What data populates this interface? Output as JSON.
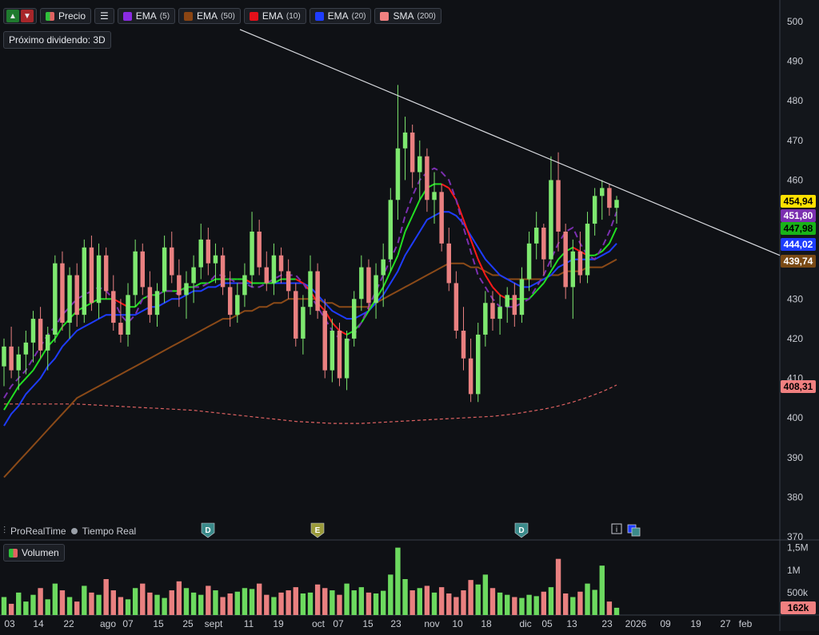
{
  "toolbar": {
    "price_label": "Precio",
    "indicators": [
      {
        "name": "EMA",
        "param": "(5)",
        "color": "#8a2be2"
      },
      {
        "name": "EMA",
        "param": "(50)",
        "color": "#8b4513"
      },
      {
        "name": "EMA",
        "param": "(10)",
        "color": "#e3101a"
      },
      {
        "name": "EMA",
        "param": "(20)",
        "color": "#1e3cff"
      },
      {
        "name": "SMA",
        "param": "(200)",
        "color": "#f08080"
      }
    ],
    "dividend": "Próximo dividendo: 3D"
  },
  "footer": {
    "brand": "ProRealTime",
    "mode": "Tiempo Real",
    "volume_label": "Volumen"
  },
  "events": [
    {
      "letter": "D",
      "date_index": 1,
      "color": "#3a8a8a"
    },
    {
      "letter": "E",
      "date_index": 2,
      "color": "#9a9a3a"
    },
    {
      "letter": "D",
      "date_index": 3,
      "color": "#3a8a8a"
    }
  ],
  "price_labels": [
    {
      "value": "454,94",
      "bg": "#ffe100",
      "fg": "#000000"
    },
    {
      "value": "451,80",
      "bg": "#7b2fb0",
      "fg": "#ffffff"
    },
    {
      "value": "447,98",
      "bg": "#19b319",
      "fg": "#000000"
    },
    {
      "value": "444,02",
      "bg": "#1e3cff",
      "fg": "#ffffff"
    },
    {
      "value": "439,74",
      "bg": "#7a4a15",
      "fg": "#ffffff"
    },
    {
      "value": "408,31",
      "bg": "#f08080",
      "fg": "#000000"
    }
  ],
  "volume_last_label": "162k",
  "chart_data": {
    "type": "candlestick",
    "y_axis": {
      "ticks": [
        370,
        380,
        390,
        400,
        410,
        420,
        430,
        440,
        450,
        460,
        470,
        480,
        490,
        500
      ],
      "ylim": [
        368,
        505
      ]
    },
    "volume_axis": {
      "ticks": [
        "500k",
        "1M",
        "1,5M"
      ],
      "ylim": [
        0,
        1600000
      ]
    },
    "x_ticks": [
      "03",
      "14",
      "22",
      "ago",
      "07",
      "15",
      "25",
      "sept",
      "11",
      "19",
      "oct",
      "07",
      "15",
      "23",
      "nov",
      "10",
      "18",
      "dic",
      "05",
      "13",
      "23",
      "2026",
      "09",
      "19",
      "27",
      "feb"
    ],
    "ema5": [
      405,
      408,
      410,
      412,
      415,
      418,
      421,
      423,
      426,
      428,
      430,
      431,
      432,
      433,
      432,
      430,
      426,
      424,
      426,
      430,
      431,
      431,
      432,
      432,
      431,
      433,
      433,
      433,
      434,
      436,
      436,
      435,
      434,
      434,
      433,
      433,
      434,
      435,
      436,
      436,
      436,
      434,
      431,
      428,
      425,
      422,
      420,
      419,
      421,
      424,
      428,
      432,
      436,
      440,
      444,
      451,
      456,
      460,
      462,
      463,
      462,
      460,
      455,
      448,
      442,
      436,
      433,
      430,
      428,
      428,
      428,
      429,
      430,
      433,
      436,
      440,
      444,
      447,
      448,
      444,
      441,
      440,
      443,
      447,
      452
    ],
    "ema10": [
      402,
      405,
      408,
      410,
      412,
      415,
      418,
      420,
      423,
      425,
      427,
      428,
      429,
      430,
      430,
      430,
      429,
      428,
      428,
      430,
      431,
      431,
      432,
      432,
      432,
      433,
      433,
      434,
      434,
      435,
      435,
      435,
      435,
      435,
      434,
      434,
      434,
      434,
      435,
      435,
      435,
      434,
      432,
      429,
      427,
      424,
      422,
      421,
      422,
      424,
      427,
      430,
      433,
      437,
      441,
      447,
      451,
      455,
      458,
      459,
      459,
      458,
      455,
      450,
      445,
      440,
      436,
      433,
      431,
      430,
      430,
      430,
      430,
      432,
      434,
      437,
      440,
      442,
      443,
      442,
      441,
      441,
      442,
      444,
      448
    ],
    "ema20": [
      398,
      401,
      403,
      406,
      408,
      410,
      413,
      415,
      418,
      420,
      422,
      423,
      424,
      425,
      426,
      426,
      426,
      426,
      426,
      427,
      428,
      428,
      429,
      430,
      430,
      431,
      432,
      432,
      433,
      433,
      434,
      434,
      434,
      434,
      434,
      434,
      434,
      434,
      434,
      434,
      434,
      434,
      433,
      431,
      429,
      427,
      426,
      425,
      425,
      426,
      427,
      429,
      431,
      434,
      437,
      441,
      444,
      447,
      450,
      451,
      452,
      452,
      451,
      449,
      446,
      443,
      440,
      438,
      436,
      435,
      434,
      433,
      433,
      434,
      435,
      436,
      438,
      439,
      440,
      440,
      440,
      440,
      441,
      442,
      444
    ],
    "ema50": [
      385,
      387,
      389,
      391,
      393,
      395,
      397,
      399,
      401,
      403,
      405,
      406,
      407,
      408,
      409,
      410,
      411,
      412,
      413,
      414,
      415,
      416,
      417,
      418,
      419,
      420,
      421,
      422,
      423,
      424,
      425,
      425,
      426,
      427,
      427,
      428,
      428,
      429,
      429,
      430,
      430,
      430,
      430,
      430,
      429,
      429,
      428,
      428,
      428,
      428,
      428,
      429,
      430,
      431,
      432,
      433,
      434,
      435,
      436,
      437,
      438,
      439,
      439,
      439,
      438,
      438,
      437,
      436,
      436,
      435,
      435,
      435,
      435,
      435,
      435,
      436,
      436,
      437,
      437,
      437,
      438,
      438,
      438,
      439,
      440
    ],
    "sma200": [
      403.5,
      403.5,
      403.5,
      403.5,
      403.5,
      403.5,
      403.5,
      403.5,
      403.5,
      403.5,
      403.5,
      403.4,
      403.3,
      403.2,
      403.1,
      403.0,
      402.9,
      402.8,
      402.7,
      402.6,
      402.5,
      402.4,
      402.3,
      402.2,
      402.1,
      402.0,
      401.9,
      401.7,
      401.5,
      401.3,
      401.1,
      400.9,
      400.7,
      400.5,
      400.3,
      400.1,
      399.9,
      399.7,
      399.5,
      399.3,
      399.1,
      399.0,
      398.9,
      398.8,
      398.7,
      398.6,
      398.6,
      398.6,
      398.6,
      398.6,
      398.7,
      398.8,
      398.9,
      399.0,
      399.1,
      399.2,
      399.3,
      399.4,
      399.5,
      399.6,
      399.7,
      399.8,
      399.9,
      400.0,
      400.1,
      400.2,
      400.3,
      400.4,
      400.6,
      400.8,
      401.0,
      401.3,
      401.6,
      401.9,
      402.2,
      402.6,
      403.0,
      403.5,
      404.0,
      404.6,
      405.2,
      405.9,
      406.6,
      407.4,
      408.3
    ],
    "trendline": {
      "from": 498,
      "to": 441
    },
    "candles": [
      {
        "o": 413,
        "h": 420,
        "l": 408,
        "c": 418
      },
      {
        "o": 418,
        "h": 423,
        "l": 410,
        "c": 412
      },
      {
        "o": 412,
        "h": 418,
        "l": 407,
        "c": 416
      },
      {
        "o": 416,
        "h": 422,
        "l": 411,
        "c": 419
      },
      {
        "o": 419,
        "h": 427,
        "l": 414,
        "c": 425
      },
      {
        "o": 425,
        "h": 428,
        "l": 415,
        "c": 417
      },
      {
        "o": 417,
        "h": 423,
        "l": 412,
        "c": 421
      },
      {
        "o": 421,
        "h": 441,
        "l": 419,
        "c": 439
      },
      {
        "o": 439,
        "h": 442,
        "l": 422,
        "c": 424
      },
      {
        "o": 424,
        "h": 438,
        "l": 420,
        "c": 436
      },
      {
        "o": 436,
        "h": 439,
        "l": 423,
        "c": 426
      },
      {
        "o": 426,
        "h": 445,
        "l": 424,
        "c": 443
      },
      {
        "o": 443,
        "h": 446,
        "l": 427,
        "c": 429
      },
      {
        "o": 429,
        "h": 444,
        "l": 425,
        "c": 441
      },
      {
        "o": 441,
        "h": 443,
        "l": 430,
        "c": 432
      },
      {
        "o": 432,
        "h": 436,
        "l": 422,
        "c": 424
      },
      {
        "o": 424,
        "h": 430,
        "l": 419,
        "c": 421
      },
      {
        "o": 421,
        "h": 434,
        "l": 418,
        "c": 431
      },
      {
        "o": 431,
        "h": 445,
        "l": 428,
        "c": 442
      },
      {
        "o": 442,
        "h": 444,
        "l": 431,
        "c": 433
      },
      {
        "o": 433,
        "h": 437,
        "l": 424,
        "c": 426
      },
      {
        "o": 426,
        "h": 434,
        "l": 423,
        "c": 432
      },
      {
        "o": 432,
        "h": 446,
        "l": 429,
        "c": 443
      },
      {
        "o": 443,
        "h": 447,
        "l": 434,
        "c": 436
      },
      {
        "o": 436,
        "h": 440,
        "l": 428,
        "c": 431
      },
      {
        "o": 431,
        "h": 437,
        "l": 425,
        "c": 434
      },
      {
        "o": 434,
        "h": 441,
        "l": 429,
        "c": 438
      },
      {
        "o": 438,
        "h": 449,
        "l": 435,
        "c": 445
      },
      {
        "o": 445,
        "h": 448,
        "l": 436,
        "c": 439
      },
      {
        "o": 439,
        "h": 444,
        "l": 434,
        "c": 441
      },
      {
        "o": 441,
        "h": 443,
        "l": 431,
        "c": 433
      },
      {
        "o": 433,
        "h": 437,
        "l": 423,
        "c": 426
      },
      {
        "o": 426,
        "h": 434,
        "l": 424,
        "c": 431
      },
      {
        "o": 431,
        "h": 439,
        "l": 428,
        "c": 436
      },
      {
        "o": 436,
        "h": 452,
        "l": 433,
        "c": 447
      },
      {
        "o": 447,
        "h": 450,
        "l": 436,
        "c": 438
      },
      {
        "o": 438,
        "h": 442,
        "l": 432,
        "c": 434
      },
      {
        "o": 434,
        "h": 444,
        "l": 431,
        "c": 441
      },
      {
        "o": 441,
        "h": 443,
        "l": 434,
        "c": 437
      },
      {
        "o": 437,
        "h": 440,
        "l": 430,
        "c": 432
      },
      {
        "o": 432,
        "h": 434,
        "l": 418,
        "c": 420
      },
      {
        "o": 420,
        "h": 431,
        "l": 416,
        "c": 428
      },
      {
        "o": 428,
        "h": 441,
        "l": 426,
        "c": 437
      },
      {
        "o": 437,
        "h": 439,
        "l": 425,
        "c": 427
      },
      {
        "o": 427,
        "h": 430,
        "l": 410,
        "c": 412
      },
      {
        "o": 412,
        "h": 425,
        "l": 409,
        "c": 422
      },
      {
        "o": 422,
        "h": 424,
        "l": 408,
        "c": 410
      },
      {
        "o": 410,
        "h": 422,
        "l": 407,
        "c": 420
      },
      {
        "o": 420,
        "h": 432,
        "l": 418,
        "c": 430
      },
      {
        "o": 430,
        "h": 441,
        "l": 427,
        "c": 438
      },
      {
        "o": 438,
        "h": 440,
        "l": 427,
        "c": 429
      },
      {
        "o": 429,
        "h": 439,
        "l": 425,
        "c": 436
      },
      {
        "o": 436,
        "h": 444,
        "l": 428,
        "c": 440
      },
      {
        "o": 440,
        "h": 458,
        "l": 437,
        "c": 455
      },
      {
        "o": 455,
        "h": 484,
        "l": 450,
        "c": 468
      },
      {
        "o": 468,
        "h": 476,
        "l": 460,
        "c": 472
      },
      {
        "o": 472,
        "h": 474,
        "l": 458,
        "c": 462
      },
      {
        "o": 462,
        "h": 470,
        "l": 455,
        "c": 466
      },
      {
        "o": 466,
        "h": 468,
        "l": 452,
        "c": 455
      },
      {
        "o": 455,
        "h": 462,
        "l": 449,
        "c": 457
      },
      {
        "o": 457,
        "h": 459,
        "l": 442,
        "c": 444
      },
      {
        "o": 444,
        "h": 448,
        "l": 432,
        "c": 434
      },
      {
        "o": 434,
        "h": 437,
        "l": 420,
        "c": 422
      },
      {
        "o": 422,
        "h": 428,
        "l": 412,
        "c": 415
      },
      {
        "o": 415,
        "h": 420,
        "l": 404,
        "c": 406
      },
      {
        "o": 406,
        "h": 424,
        "l": 404,
        "c": 421
      },
      {
        "o": 421,
        "h": 432,
        "l": 418,
        "c": 429
      },
      {
        "o": 429,
        "h": 432,
        "l": 422,
        "c": 425
      },
      {
        "o": 425,
        "h": 431,
        "l": 421,
        "c": 428
      },
      {
        "o": 428,
        "h": 433,
        "l": 424,
        "c": 431
      },
      {
        "o": 431,
        "h": 434,
        "l": 423,
        "c": 426
      },
      {
        "o": 426,
        "h": 438,
        "l": 424,
        "c": 435
      },
      {
        "o": 435,
        "h": 447,
        "l": 432,
        "c": 444
      },
      {
        "o": 444,
        "h": 452,
        "l": 440,
        "c": 448
      },
      {
        "o": 448,
        "h": 449,
        "l": 436,
        "c": 440
      },
      {
        "o": 440,
        "h": 466,
        "l": 438,
        "c": 460
      },
      {
        "o": 460,
        "h": 467,
        "l": 442,
        "c": 447
      },
      {
        "o": 447,
        "h": 449,
        "l": 430,
        "c": 433
      },
      {
        "o": 433,
        "h": 445,
        "l": 425,
        "c": 442
      },
      {
        "o": 442,
        "h": 447,
        "l": 434,
        "c": 436
      },
      {
        "o": 436,
        "h": 452,
        "l": 434,
        "c": 449
      },
      {
        "o": 449,
        "h": 458,
        "l": 446,
        "c": 456
      },
      {
        "o": 456,
        "h": 460,
        "l": 450,
        "c": 458
      },
      {
        "o": 458,
        "h": 459,
        "l": 451,
        "c": 453
      },
      {
        "o": 453,
        "h": 456,
        "l": 449,
        "c": 455
      }
    ],
    "volume": [
      400,
      250,
      500,
      300,
      450,
      600,
      350,
      700,
      550,
      400,
      300,
      650,
      500,
      450,
      800,
      550,
      400,
      350,
      600,
      700,
      500,
      450,
      380,
      550,
      750,
      600,
      500,
      450,
      650,
      550,
      400,
      480,
      520,
      600,
      580,
      700,
      450,
      400,
      500,
      550,
      620,
      480,
      500,
      680,
      600,
      550,
      450,
      700,
      550,
      620,
      500,
      480,
      540,
      900,
      1500,
      800,
      550,
      600,
      650,
      500,
      620,
      480,
      400,
      550,
      780,
      680,
      900,
      600,
      500,
      450,
      400,
      380,
      450,
      420,
      520,
      620,
      1250,
      480,
      400,
      520,
      700,
      560,
      1100,
      300,
      162
    ]
  }
}
